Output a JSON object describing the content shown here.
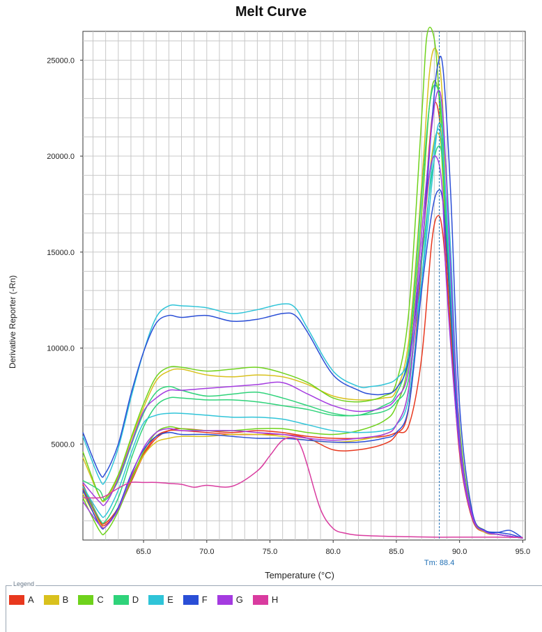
{
  "chart_data": {
    "type": "line",
    "title": "Melt Curve",
    "xlabel": "Temperature (°C)",
    "ylabel": "Derivative Reporter (-Rn)",
    "xlim": [
      60.2,
      95.2
    ],
    "ylim": [
      0,
      26500
    ],
    "xticks": [
      65,
      70,
      75,
      80,
      85,
      90,
      95
    ],
    "xtick_labels": [
      "65.0",
      "70.0",
      "75.0",
      "80.0",
      "85.0",
      "90.0",
      "95.0"
    ],
    "yticks": [
      5000,
      10000,
      15000,
      20000,
      25000
    ],
    "ytick_labels": [
      "5000.0",
      "10000.0",
      "15000.0",
      "20000.0",
      "25000.0"
    ],
    "grid": true,
    "tm_value": 88.4,
    "tm_label": "Tm: 88.4",
    "legend_title": "Legend",
    "legend_position": "bottom",
    "series": [
      {
        "name": "A",
        "color": "#e8381e",
        "x": [
          60.2,
          61.5,
          62,
          63,
          64,
          65,
          66,
          67,
          68,
          70,
          72,
          74,
          76,
          78,
          80,
          82,
          84,
          85,
          86,
          87,
          87.6,
          88.1,
          88.6,
          89,
          90,
          91,
          92,
          93,
          94,
          95
        ],
        "y": [
          2900,
          1100,
          900,
          1700,
          3200,
          4500,
          5400,
          5700,
          5700,
          5600,
          5500,
          5500,
          5500,
          5300,
          4700,
          4700,
          5000,
          5500,
          7000,
          14500,
          20500,
          22800,
          20500,
          14000,
          5000,
          1200,
          400,
          300,
          200,
          100
        ]
      },
      {
        "name": "A",
        "color": "#e8381e",
        "x": [
          60.2,
          61.5,
          62,
          63,
          64,
          65,
          66,
          67,
          68,
          70,
          72,
          74,
          76,
          78,
          80,
          82,
          84,
          85,
          86,
          87,
          87.8,
          88.3,
          88.7,
          89.2,
          90,
          91,
          92,
          93,
          94,
          95
        ],
        "y": [
          2700,
          1000,
          800,
          1600,
          3000,
          4400,
          5300,
          5700,
          5800,
          5700,
          5600,
          5700,
          5600,
          5400,
          5300,
          5300,
          5400,
          5600,
          6000,
          9500,
          15500,
          16900,
          15800,
          11500,
          4500,
          1100,
          400,
          300,
          200,
          100
        ]
      },
      {
        "name": "B",
        "color": "#d9c11d",
        "x": [
          60.2,
          61.5,
          62,
          63,
          64,
          65,
          66,
          67,
          68,
          70,
          72,
          74,
          76,
          78,
          80,
          82,
          84,
          85,
          86,
          87,
          87.6,
          88.1,
          88.6,
          89,
          90,
          91,
          92,
          93,
          94,
          95
        ],
        "y": [
          4300,
          2300,
          2100,
          3300,
          5200,
          6900,
          8300,
          8800,
          8900,
          8600,
          8500,
          8600,
          8500,
          8100,
          7500,
          7300,
          7400,
          7800,
          10500,
          18500,
          24200,
          25600,
          23500,
          16500,
          5800,
          1400,
          500,
          300,
          200,
          100
        ]
      },
      {
        "name": "B",
        "color": "#d9c11d",
        "x": [
          60.2,
          61.5,
          62,
          63,
          64,
          65,
          66,
          67,
          68,
          70,
          72,
          74,
          76,
          78,
          80,
          82,
          84,
          85,
          86,
          87,
          87.8,
          88.3,
          88.7,
          89.2,
          90,
          91,
          92,
          93,
          94,
          95
        ],
        "y": [
          2400,
          900,
          700,
          1600,
          3100,
          4400,
          5100,
          5300,
          5400,
          5400,
          5500,
          5500,
          5400,
          5200,
          5100,
          5200,
          5500,
          6000,
          8000,
          15000,
          20000,
          21200,
          19500,
          13500,
          4800,
          1200,
          400,
          300,
          200,
          100
        ]
      },
      {
        "name": "C",
        "color": "#6fd21c",
        "x": [
          60.2,
          61.5,
          62,
          63,
          64,
          65,
          66,
          67,
          68,
          70,
          72,
          74,
          76,
          78,
          80,
          82,
          84,
          85,
          86,
          87,
          87.4,
          87.9,
          88.3,
          88.8,
          90,
          91,
          92,
          93,
          94,
          95
        ],
        "y": [
          4600,
          2300,
          2200,
          3400,
          5300,
          7100,
          8500,
          9000,
          9000,
          8800,
          8900,
          9000,
          8700,
          8200,
          7400,
          7200,
          7500,
          8200,
          12000,
          22000,
          26200,
          26400,
          24000,
          17500,
          5900,
          1400,
          500,
          300,
          200,
          100
        ]
      },
      {
        "name": "C",
        "color": "#6fd21c",
        "x": [
          60.2,
          61.5,
          62,
          63,
          64,
          65,
          66,
          67,
          68,
          70,
          72,
          74,
          76,
          78,
          80,
          82,
          84,
          85,
          86,
          87,
          87.6,
          88.1,
          88.6,
          89,
          90,
          91,
          92,
          93,
          94,
          95
        ],
        "y": [
          2200,
          500,
          400,
          1500,
          3100,
          4600,
          5600,
          5900,
          5800,
          5700,
          5700,
          5800,
          5800,
          5600,
          5500,
          5700,
          6200,
          7000,
          9500,
          17000,
          22500,
          23900,
          21500,
          15000,
          5200,
          1300,
          450,
          300,
          200,
          100
        ]
      },
      {
        "name": "D",
        "color": "#2fd37a",
        "x": [
          60.2,
          61.5,
          62,
          63,
          64,
          65,
          66,
          67,
          68,
          70,
          72,
          74,
          76,
          78,
          80,
          82,
          84,
          85,
          86,
          87,
          87.6,
          88.1,
          88.6,
          89,
          90,
          91,
          92,
          93,
          94,
          95
        ],
        "y": [
          3100,
          2600,
          2100,
          3100,
          4900,
          6600,
          7700,
          8000,
          7800,
          7500,
          7600,
          7700,
          7400,
          7000,
          6600,
          6500,
          7000,
          7600,
          10000,
          18000,
          22500,
          23700,
          22000,
          15500,
          5500,
          1300,
          450,
          300,
          200,
          100
        ]
      },
      {
        "name": "D",
        "color": "#2fd37a",
        "x": [
          60.2,
          61.5,
          62,
          63,
          64,
          65,
          66,
          67,
          68,
          70,
          72,
          74,
          76,
          78,
          80,
          82,
          84,
          85,
          86,
          87,
          87.8,
          88.3,
          88.7,
          89.2,
          90,
          91,
          92,
          93,
          94,
          95
        ],
        "y": [
          2800,
          1100,
          1000,
          2200,
          4200,
          5900,
          7000,
          7400,
          7400,
          7300,
          7300,
          7200,
          7000,
          6800,
          6500,
          6500,
          6700,
          7200,
          8500,
          14500,
          19000,
          20500,
          19500,
          14000,
          5000,
          1200,
          450,
          300,
          200,
          100
        ]
      },
      {
        "name": "E",
        "color": "#2fc4d8",
        "x": [
          60.2,
          61.5,
          62,
          63,
          64,
          65,
          66,
          67,
          68,
          70,
          72,
          74,
          76,
          77,
          78,
          80,
          82,
          83,
          84,
          85,
          86,
          87,
          87.8,
          88.3,
          88.8,
          89.3,
          90,
          91,
          92,
          93,
          94,
          95
        ],
        "y": [
          5400,
          3200,
          3100,
          4800,
          7400,
          9800,
          11600,
          12200,
          12200,
          12100,
          11800,
          12000,
          12300,
          12100,
          11000,
          8800,
          8000,
          8000,
          8100,
          8400,
          9500,
          13500,
          18500,
          21600,
          20500,
          15000,
          5500,
          1300,
          500,
          300,
          200,
          100
        ]
      },
      {
        "name": "E",
        "color": "#2fc4d8",
        "x": [
          60.2,
          61.5,
          62,
          63,
          64,
          65,
          66,
          67,
          68,
          70,
          72,
          74,
          76,
          78,
          80,
          82,
          84,
          85,
          86,
          87,
          87.8,
          88.3,
          88.7,
          89.2,
          90,
          91,
          92,
          93,
          94,
          95
        ],
        "y": [
          2800,
          1400,
          1300,
          2600,
          4500,
          6100,
          6500,
          6600,
          6600,
          6500,
          6400,
          6400,
          6300,
          6000,
          5700,
          5600,
          5700,
          6000,
          7500,
          13500,
          19500,
          21400,
          20000,
          14500,
          5200,
          1300,
          450,
          300,
          200,
          100
        ]
      },
      {
        "name": "F",
        "color": "#2a4ed6",
        "x": [
          60.2,
          61.5,
          62,
          63,
          64,
          65,
          66,
          67,
          68,
          70,
          72,
          74,
          76,
          77,
          78,
          80,
          82,
          83,
          84,
          85,
          86,
          87,
          87.9,
          88.3,
          88.7,
          89.3,
          90,
          91,
          92,
          93,
          94,
          95
        ],
        "y": [
          5600,
          3500,
          3500,
          5000,
          7600,
          9800,
          11300,
          11700,
          11600,
          11700,
          11400,
          11500,
          11800,
          11700,
          10800,
          8600,
          7800,
          7600,
          7600,
          7900,
          9500,
          15000,
          22500,
          24800,
          24500,
          18000,
          7000,
          1500,
          500,
          400,
          500,
          100
        ]
      },
      {
        "name": "F",
        "color": "#2a4ed6",
        "x": [
          60.2,
          61.5,
          62,
          63,
          64,
          65,
          66,
          67,
          68,
          70,
          72,
          74,
          76,
          78,
          80,
          82,
          84,
          85,
          86,
          87,
          87.8,
          88.3,
          88.7,
          89.2,
          90,
          91,
          92,
          93,
          94,
          95
        ],
        "y": [
          2600,
          800,
          700,
          1700,
          3400,
          4700,
          5400,
          5600,
          5500,
          5500,
          5400,
          5300,
          5300,
          5200,
          5100,
          5100,
          5300,
          5600,
          7000,
          13000,
          17000,
          18200,
          17500,
          13000,
          4800,
          1200,
          500,
          400,
          300,
          100
        ]
      },
      {
        "name": "G",
        "color": "#a43be0",
        "x": [
          60.2,
          61.5,
          62,
          63,
          64,
          65,
          66,
          67,
          68,
          70,
          72,
          74,
          76,
          78,
          80,
          82,
          84,
          85,
          86,
          87,
          87.8,
          88.3,
          88.7,
          89.2,
          90,
          91,
          92,
          93,
          94,
          95
        ],
        "y": [
          3000,
          2000,
          1900,
          3200,
          5000,
          6700,
          7400,
          7800,
          7800,
          7900,
          8000,
          8100,
          8200,
          7600,
          7000,
          6700,
          6900,
          7400,
          9000,
          16000,
          21500,
          23400,
          22000,
          15500,
          5500,
          1300,
          450,
          300,
          200,
          100
        ]
      },
      {
        "name": "G",
        "color": "#a43be0",
        "x": [
          60.2,
          61.5,
          62,
          63,
          64,
          65,
          66,
          67,
          68,
          70,
          72,
          74,
          76,
          78,
          80,
          82,
          84,
          85,
          86,
          87,
          87.6,
          88.1,
          88.6,
          89,
          90,
          91,
          92,
          93,
          94,
          95
        ],
        "y": [
          2000,
          800,
          700,
          1600,
          3300,
          4800,
          5600,
          5800,
          5700,
          5700,
          5700,
          5600,
          5500,
          5300,
          5200,
          5300,
          5500,
          6000,
          8000,
          15000,
          19000,
          20000,
          18500,
          13000,
          4700,
          1200,
          450,
          300,
          200,
          100
        ]
      },
      {
        "name": "H",
        "color": "#d93b9f",
        "x": [
          60.2,
          61.5,
          62,
          63,
          64,
          65,
          66,
          67,
          68,
          69,
          70,
          72,
          74,
          75,
          76,
          77,
          77.5,
          78,
          79,
          80,
          81,
          82,
          84,
          86,
          88,
          90,
          92,
          93,
          94,
          95
        ],
        "y": [
          2200,
          2200,
          2300,
          2700,
          3000,
          3000,
          3000,
          2950,
          2900,
          2750,
          2850,
          2800,
          3600,
          4400,
          5200,
          5300,
          4800,
          3800,
          1600,
          600,
          350,
          250,
          200,
          170,
          150,
          150,
          150,
          150,
          140,
          130
        ]
      }
    ]
  },
  "legend": {
    "title": "Legend",
    "items": [
      {
        "label": "A",
        "color": "#e8381e"
      },
      {
        "label": "B",
        "color": "#d9c11d"
      },
      {
        "label": "C",
        "color": "#6fd21c"
      },
      {
        "label": "D",
        "color": "#2fd37a"
      },
      {
        "label": "E",
        "color": "#2fc4d8"
      },
      {
        "label": "F",
        "color": "#2a4ed6"
      },
      {
        "label": "G",
        "color": "#a43be0"
      },
      {
        "label": "H",
        "color": "#d93b9f"
      }
    ]
  }
}
